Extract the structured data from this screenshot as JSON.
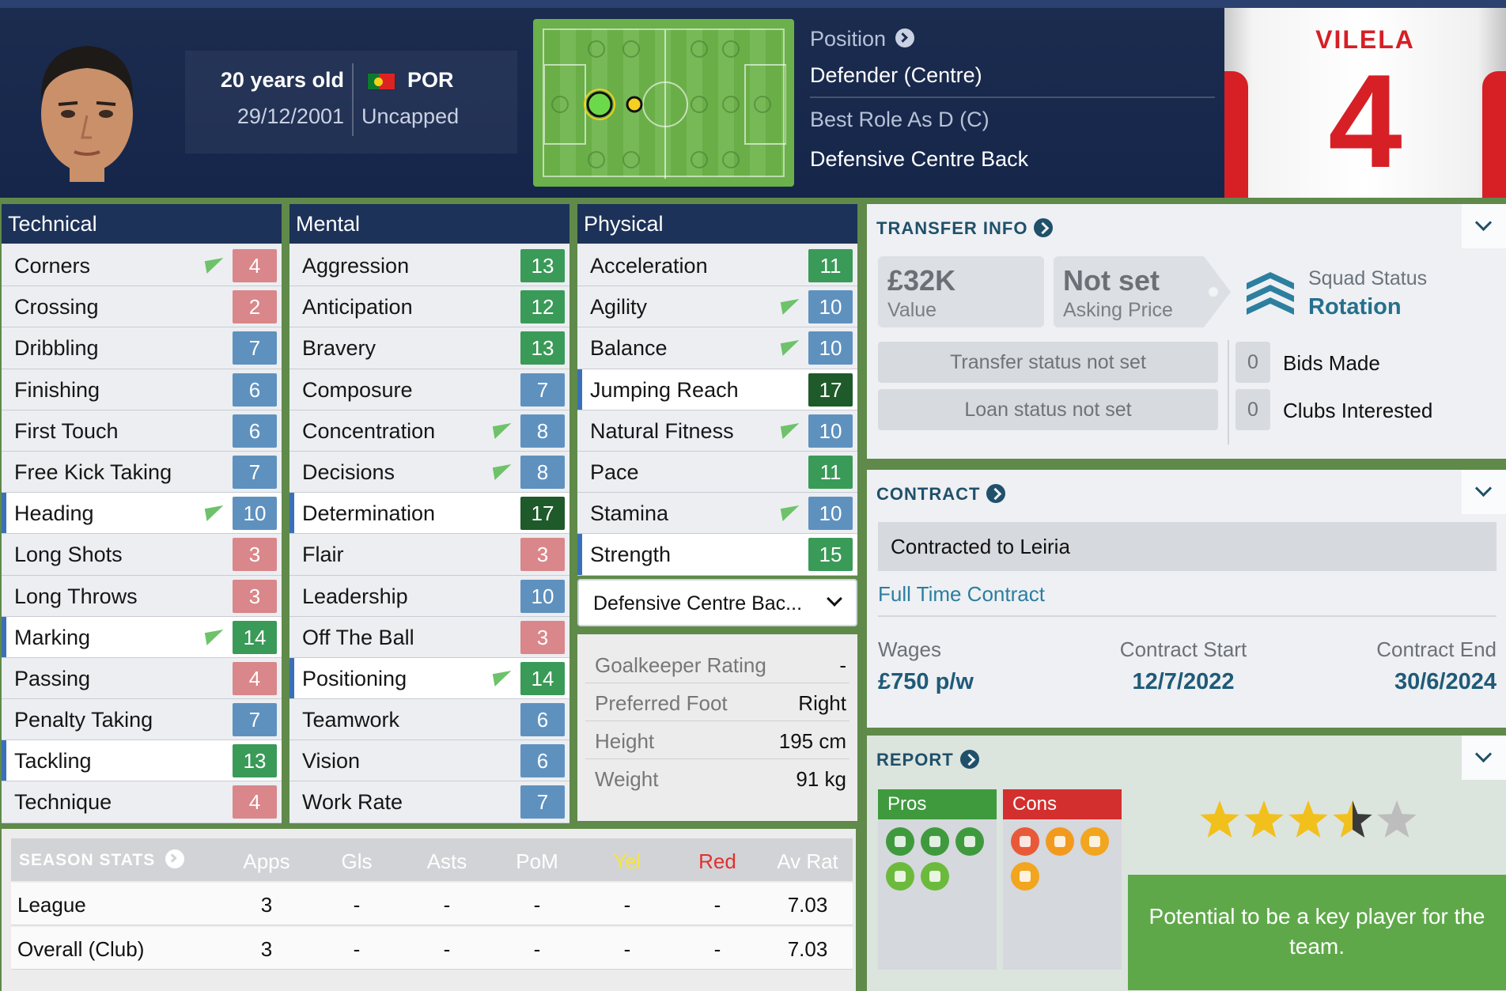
{
  "header": {
    "age": "20 years old",
    "dob": "29/12/2001",
    "nationality": "POR",
    "caps": "Uncapped",
    "position_label": "Position",
    "position_value": "Defender (Centre)",
    "best_role_label": "Best Role As D (C)",
    "best_role_value": "Defensive Centre Back",
    "shirt_name": "VILELA",
    "shirt_number": "4"
  },
  "technical": {
    "title": "Technical",
    "attrs": [
      {
        "name": "Corners",
        "value": "4",
        "color": "red",
        "arrow": true,
        "highlight": false
      },
      {
        "name": "Crossing",
        "value": "2",
        "color": "red",
        "arrow": false,
        "highlight": false
      },
      {
        "name": "Dribbling",
        "value": "7",
        "color": "blue",
        "arrow": false,
        "highlight": false
      },
      {
        "name": "Finishing",
        "value": "6",
        "color": "blue",
        "arrow": false,
        "highlight": false
      },
      {
        "name": "First Touch",
        "value": "6",
        "color": "blue",
        "arrow": false,
        "highlight": false
      },
      {
        "name": "Free Kick Taking",
        "value": "7",
        "color": "blue",
        "arrow": false,
        "highlight": false
      },
      {
        "name": "Heading",
        "value": "10",
        "color": "blue",
        "arrow": true,
        "highlight": true
      },
      {
        "name": "Long Shots",
        "value": "3",
        "color": "red",
        "arrow": false,
        "highlight": false
      },
      {
        "name": "Long Throws",
        "value": "3",
        "color": "red",
        "arrow": false,
        "highlight": false
      },
      {
        "name": "Marking",
        "value": "14",
        "color": "green",
        "arrow": true,
        "highlight": true
      },
      {
        "name": "Passing",
        "value": "4",
        "color": "red",
        "arrow": false,
        "highlight": false
      },
      {
        "name": "Penalty Taking",
        "value": "7",
        "color": "blue",
        "arrow": false,
        "highlight": false
      },
      {
        "name": "Tackling",
        "value": "13",
        "color": "green",
        "arrow": false,
        "highlight": true
      },
      {
        "name": "Technique",
        "value": "4",
        "color": "red",
        "arrow": false,
        "highlight": false
      }
    ]
  },
  "mental": {
    "title": "Mental",
    "attrs": [
      {
        "name": "Aggression",
        "value": "13",
        "color": "green",
        "arrow": false,
        "highlight": false
      },
      {
        "name": "Anticipation",
        "value": "12",
        "color": "green",
        "arrow": false,
        "highlight": false
      },
      {
        "name": "Bravery",
        "value": "13",
        "color": "green",
        "arrow": false,
        "highlight": false
      },
      {
        "name": "Composure",
        "value": "7",
        "color": "blue",
        "arrow": false,
        "highlight": false
      },
      {
        "name": "Concentration",
        "value": "8",
        "color": "blue",
        "arrow": true,
        "highlight": false
      },
      {
        "name": "Decisions",
        "value": "8",
        "color": "blue",
        "arrow": true,
        "highlight": false
      },
      {
        "name": "Determination",
        "value": "17",
        "color": "dgreen",
        "arrow": false,
        "highlight": true
      },
      {
        "name": "Flair",
        "value": "3",
        "color": "red",
        "arrow": false,
        "highlight": false
      },
      {
        "name": "Leadership",
        "value": "10",
        "color": "blue",
        "arrow": false,
        "highlight": false
      },
      {
        "name": "Off The Ball",
        "value": "3",
        "color": "red",
        "arrow": false,
        "highlight": false
      },
      {
        "name": "Positioning",
        "value": "14",
        "color": "green",
        "arrow": true,
        "highlight": true
      },
      {
        "name": "Teamwork",
        "value": "6",
        "color": "blue",
        "arrow": false,
        "highlight": false
      },
      {
        "name": "Vision",
        "value": "6",
        "color": "blue",
        "arrow": false,
        "highlight": false
      },
      {
        "name": "Work Rate",
        "value": "7",
        "color": "blue",
        "arrow": false,
        "highlight": false
      }
    ]
  },
  "physical": {
    "title": "Physical",
    "attrs": [
      {
        "name": "Acceleration",
        "value": "11",
        "color": "green",
        "arrow": false,
        "highlight": false
      },
      {
        "name": "Agility",
        "value": "10",
        "color": "blue",
        "arrow": true,
        "highlight": false
      },
      {
        "name": "Balance",
        "value": "10",
        "color": "blue",
        "arrow": true,
        "highlight": false
      },
      {
        "name": "Jumping Reach",
        "value": "17",
        "color": "dgreen",
        "arrow": false,
        "highlight": true
      },
      {
        "name": "Natural Fitness",
        "value": "10",
        "color": "blue",
        "arrow": true,
        "highlight": false
      },
      {
        "name": "Pace",
        "value": "11",
        "color": "green",
        "arrow": false,
        "highlight": false
      },
      {
        "name": "Stamina",
        "value": "10",
        "color": "blue",
        "arrow": true,
        "highlight": false
      },
      {
        "name": "Strength",
        "value": "15",
        "color": "green",
        "arrow": false,
        "highlight": true
      }
    ],
    "role_select": "Defensive Centre Bac...",
    "info": [
      {
        "label": "Goalkeeper Rating",
        "value": "-"
      },
      {
        "label": "Preferred Foot",
        "value": "Right"
      },
      {
        "label": "Height",
        "value": "195 cm"
      },
      {
        "label": "Weight",
        "value": "91 kg"
      }
    ]
  },
  "season_stats": {
    "title": "SEASON STATS",
    "columns": [
      "Apps",
      "Gls",
      "Asts",
      "PoM",
      "Yel",
      "Red",
      "Av Rat"
    ],
    "rows": [
      {
        "label": "League",
        "cells": [
          "3",
          "-",
          "-",
          "-",
          "-",
          "-",
          "7.03"
        ]
      },
      {
        "label": "Overall (Club)",
        "cells": [
          "3",
          "-",
          "-",
          "-",
          "-",
          "-",
          "7.03"
        ]
      }
    ]
  },
  "transfer": {
    "title": "TRANSFER INFO",
    "value_amount": "£32K",
    "value_label": "Value",
    "asking_amount": "Not set",
    "asking_label": "Asking Price",
    "squad_status_label": "Squad Status",
    "squad_status_value": "Rotation",
    "transfer_status": "Transfer status not set",
    "loan_status": "Loan status not set",
    "bids_count": "0",
    "bids_label": "Bids Made",
    "clubs_count": "0",
    "clubs_label": "Clubs Interested"
  },
  "contract": {
    "title": "CONTRACT",
    "contracted_to": "Contracted to Leiria",
    "type": "Full Time Contract",
    "wages_label": "Wages",
    "wages_value": "£750 p/w",
    "start_label": "Contract Start",
    "start_value": "12/7/2022",
    "end_label": "Contract End",
    "end_value": "30/6/2024"
  },
  "report": {
    "title": "REPORT",
    "pros_label": "Pros",
    "cons_label": "Cons",
    "stars": 3.5,
    "potential_stars": 4,
    "verdict": "Potential to be a key player for the team."
  },
  "colors": {
    "header_bg": "#15264a",
    "accent": "#20506a",
    "pros": "#3f9a3e",
    "cons": "#d32f2f",
    "star": "#f2c01d"
  }
}
